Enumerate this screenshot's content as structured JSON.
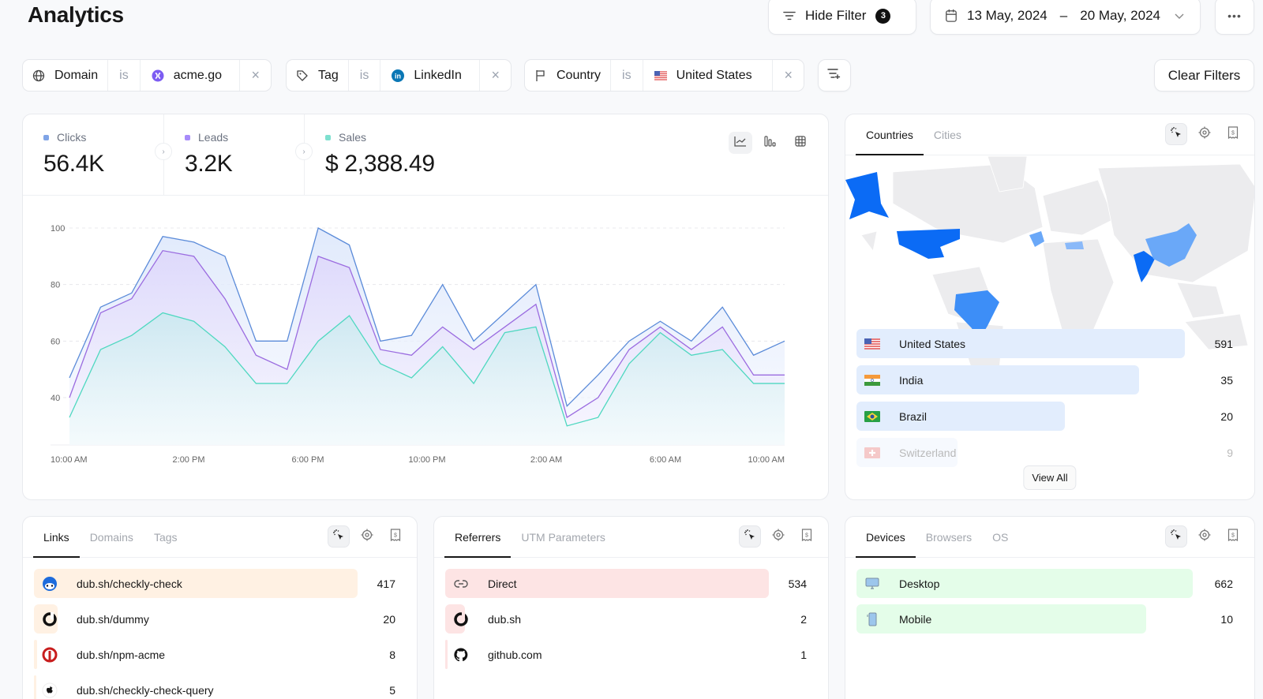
{
  "header": {
    "title": "Analytics",
    "hide_filter_label": "Hide Filter",
    "filter_count": "3",
    "date_start": "13 May, 2024",
    "date_separator": "–",
    "date_end": "20 May, 2024",
    "more_label": "•••",
    "clear_filters_label": "Clear Filters"
  },
  "filters": [
    {
      "field": "Domain",
      "op": "is",
      "value": "acme.go"
    },
    {
      "field": "Tag",
      "op": "is",
      "value": "LinkedIn"
    },
    {
      "field": "Country",
      "op": "is",
      "value": "United States"
    }
  ],
  "stats": [
    {
      "label": "Clicks",
      "value": "56.4K",
      "color": "#7fa4e6"
    },
    {
      "label": "Leads",
      "value": "3.2K",
      "color": "#a78bfa"
    },
    {
      "label": "Sales",
      "value": "$ 2,388.49",
      "color": "#7ee0cf"
    }
  ],
  "chart_data": {
    "type": "area",
    "title": "",
    "xlabel": "",
    "ylabel": "",
    "ylim": [
      23,
      100
    ],
    "yticks": [
      40,
      60,
      80,
      100
    ],
    "grid": true,
    "x_tick_labels": [
      "10:00 AM",
      "2:00 PM",
      "6:00 PM",
      "10:00 PM",
      "2:00 AM",
      "6:00 AM",
      "10:00 AM"
    ],
    "series": [
      {
        "name": "Clicks",
        "color": "#5b8bd9",
        "values": [
          47,
          72,
          77,
          97,
          95,
          90,
          60,
          60,
          100,
          94,
          60,
          62,
          80,
          60,
          70,
          80,
          37,
          48,
          60,
          67,
          60,
          72,
          55,
          60
        ]
      },
      {
        "name": "Leads",
        "color": "#9b6ce0",
        "values": [
          40,
          70,
          75,
          92,
          90,
          75,
          55,
          50,
          90,
          86,
          57,
          55,
          65,
          57,
          65,
          73,
          33,
          40,
          57,
          65,
          57,
          65,
          48,
          48
        ]
      },
      {
        "name": "Sales",
        "color": "#4fd8c0",
        "values": [
          33,
          57,
          62,
          70,
          67,
          58,
          45,
          45,
          60,
          69,
          52,
          47,
          58,
          45,
          63,
          65,
          30,
          33,
          52,
          63,
          55,
          57,
          45,
          45
        ]
      }
    ]
  },
  "locations": {
    "tabs": [
      "Countries",
      "Cities"
    ],
    "rows": [
      {
        "name": "United States",
        "count": "591",
        "flag": "us"
      },
      {
        "name": "India",
        "count": "35",
        "flag": "in"
      },
      {
        "name": "Brazil",
        "count": "20",
        "flag": "br"
      },
      {
        "name": "Switzerland",
        "count": "9",
        "flag": "ch"
      }
    ],
    "view_all_label": "View All"
  },
  "links": {
    "tabs": [
      "Links",
      "Domains",
      "Tags"
    ],
    "rows": [
      {
        "name": "dub.sh/checkly-check",
        "count": "417"
      },
      {
        "name": "dub.sh/dummy",
        "count": "20"
      },
      {
        "name": "dub.sh/npm-acme",
        "count": "8"
      },
      {
        "name": "dub.sh/checkly-check-query",
        "count": "5"
      }
    ]
  },
  "referrers": {
    "tabs": [
      "Referrers",
      "UTM Parameters"
    ],
    "rows": [
      {
        "name": "Direct",
        "count": "534"
      },
      {
        "name": "dub.sh",
        "count": "2"
      },
      {
        "name": "github.com",
        "count": "1"
      }
    ]
  },
  "devices": {
    "tabs": [
      "Devices",
      "Browsers",
      "OS"
    ],
    "rows": [
      {
        "name": "Desktop",
        "count": "662"
      },
      {
        "name": "Mobile",
        "count": "10"
      }
    ]
  }
}
